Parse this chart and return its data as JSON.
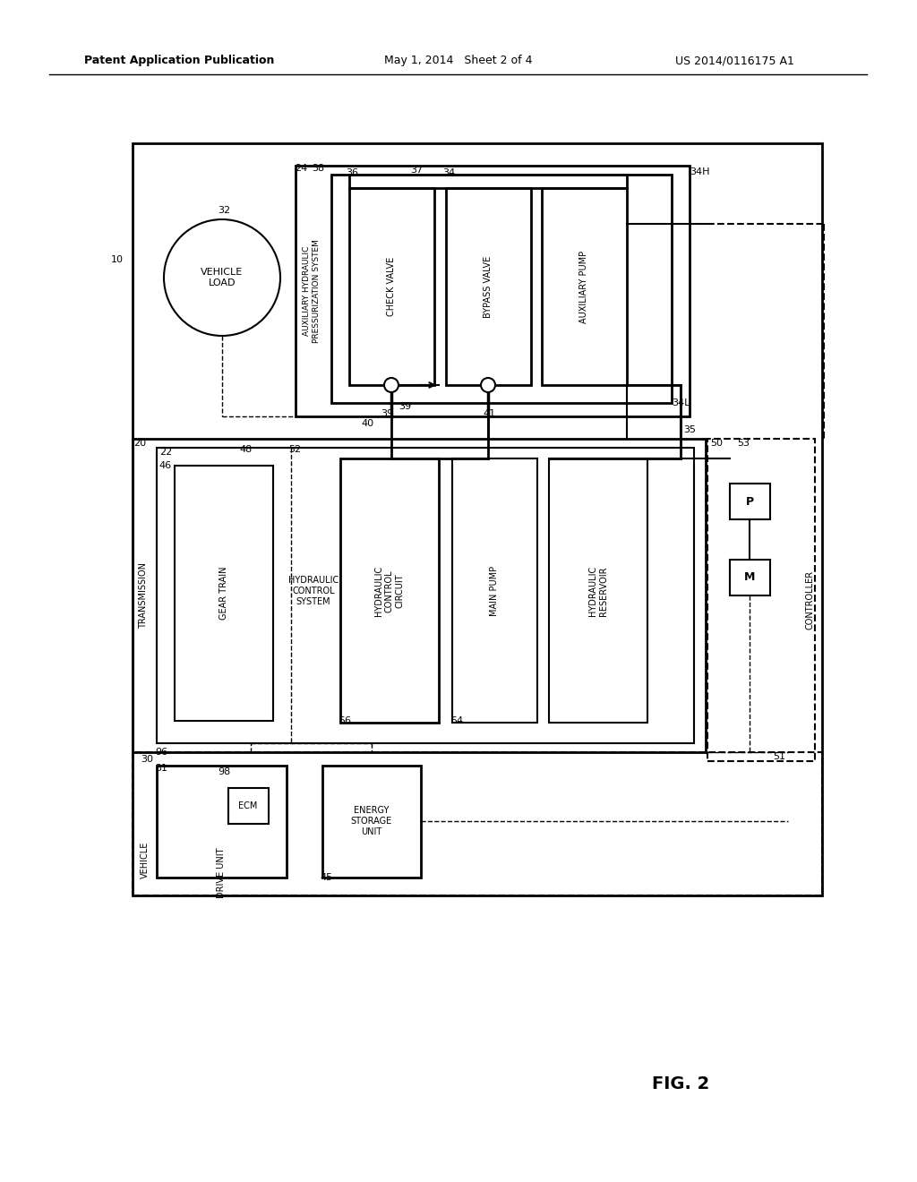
{
  "bg_color": "#ffffff",
  "header_left": "Patent Application Publication",
  "header_center": "May 1, 2014   Sheet 2 of 4",
  "header_right": "US 2014/0116175 A1",
  "fig_label": "FIG. 2"
}
